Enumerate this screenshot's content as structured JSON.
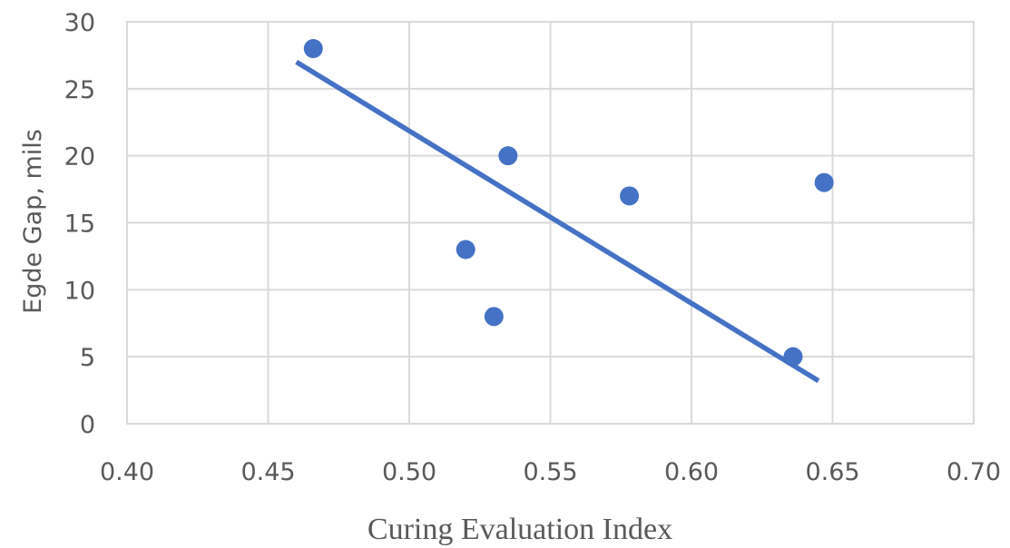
{
  "chart_data": {
    "type": "scatter",
    "xlabel": "Curing Evaluation Index",
    "ylabel": "Egde Gap, mils",
    "xlim": [
      0.4,
      0.7
    ],
    "ylim": [
      0,
      30
    ],
    "x_ticks": [
      "0.40",
      "0.45",
      "0.50",
      "0.55",
      "0.60",
      "0.65",
      "0.70"
    ],
    "y_ticks": [
      "0",
      "5",
      "10",
      "15",
      "20",
      "25",
      "30"
    ],
    "grid": true,
    "legend": "none",
    "series": [
      {
        "points": [
          {
            "x": 0.466,
            "y": 28
          },
          {
            "x": 0.52,
            "y": 13
          },
          {
            "x": 0.53,
            "y": 8
          },
          {
            "x": 0.535,
            "y": 20
          },
          {
            "x": 0.578,
            "y": 17
          },
          {
            "x": 0.636,
            "y": 5
          },
          {
            "x": 0.647,
            "y": 18
          }
        ],
        "color": "#4472c4"
      }
    ],
    "trendline": {
      "type": "linear",
      "from": {
        "x": 0.46,
        "y": 27
      },
      "to": {
        "x": 0.645,
        "y": 3.2
      },
      "color": "#4472c4"
    }
  }
}
